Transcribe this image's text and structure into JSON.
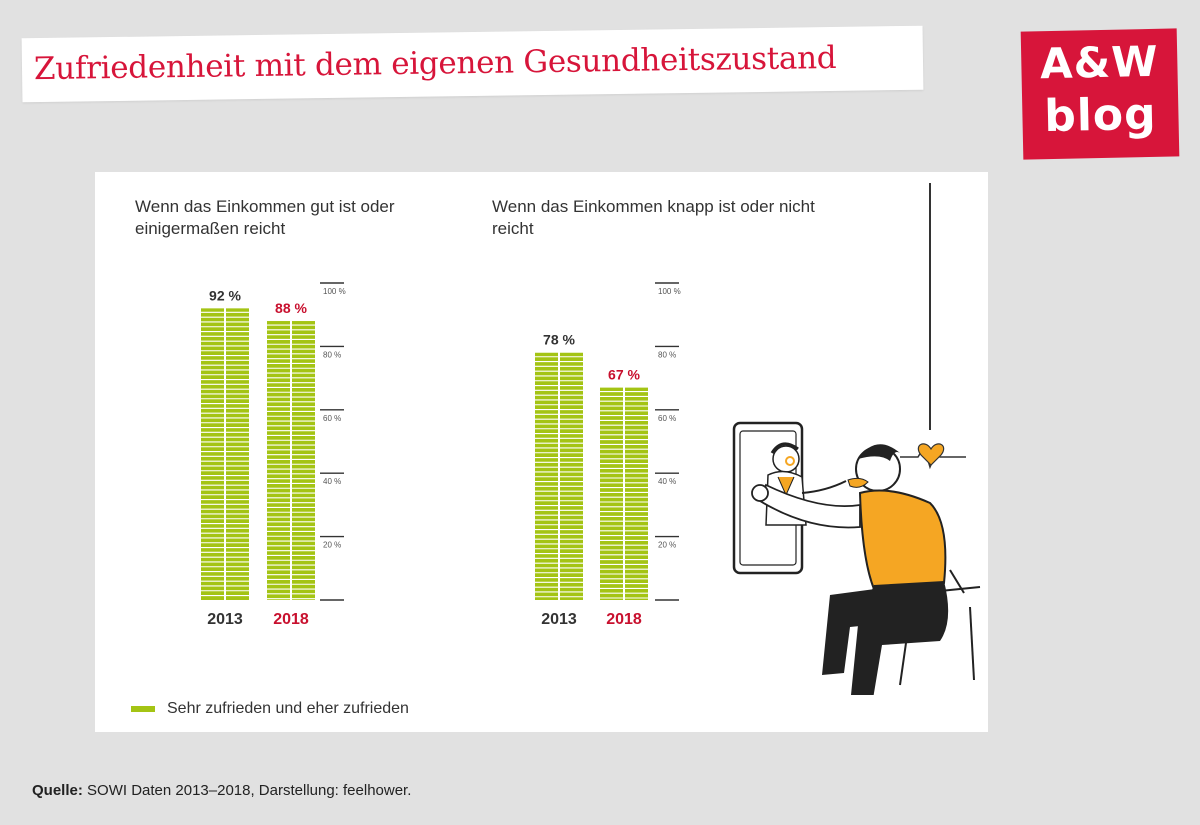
{
  "header": {
    "title": "Zufriedenheit mit dem eigenen Gesundheitszustand",
    "logo_line1": "A&W",
    "logo_line2": "blog"
  },
  "colors": {
    "bar": "#a4c414",
    "accent": "#c8102e",
    "text": "#333333"
  },
  "chart_data": [
    {
      "type": "bar",
      "title": "Wenn das Einkommen gut ist oder einigermaßen reicht",
      "categories": [
        "2013",
        "2018"
      ],
      "series": [
        {
          "name": "Sehr zufrieden und eher zufrieden",
          "values": [
            92,
            88
          ]
        }
      ],
      "data_labels": [
        "92 %",
        "88 %"
      ],
      "highlight_category": "2018",
      "ylim": [
        0,
        100
      ],
      "yticks": [
        20,
        40,
        60,
        80,
        100
      ],
      "ytick_labels": [
        "20 %",
        "40 %",
        "60 %",
        "80 %",
        "100 %"
      ],
      "grid": false
    },
    {
      "type": "bar",
      "title": "Wenn das Einkommen knapp ist oder nicht reicht",
      "categories": [
        "2013",
        "2018"
      ],
      "series": [
        {
          "name": "Sehr zufrieden und eher zufrieden",
          "values": [
            78,
            67
          ]
        }
      ],
      "data_labels": [
        "78 %",
        "67 %"
      ],
      "highlight_category": "2018",
      "ylim": [
        0,
        100
      ],
      "yticks": [
        20,
        40,
        60,
        80,
        100
      ],
      "ytick_labels": [
        "20 %",
        "40 %",
        "60 %",
        "80 %",
        "100 %"
      ],
      "grid": false
    }
  ],
  "legend": {
    "label": "Sehr zufrieden und eher zufrieden",
    "placement": "bottom-left"
  },
  "source": {
    "label": "Quelle:",
    "text": " SOWI Daten 2013–2018, Darstellung: feelhower."
  }
}
